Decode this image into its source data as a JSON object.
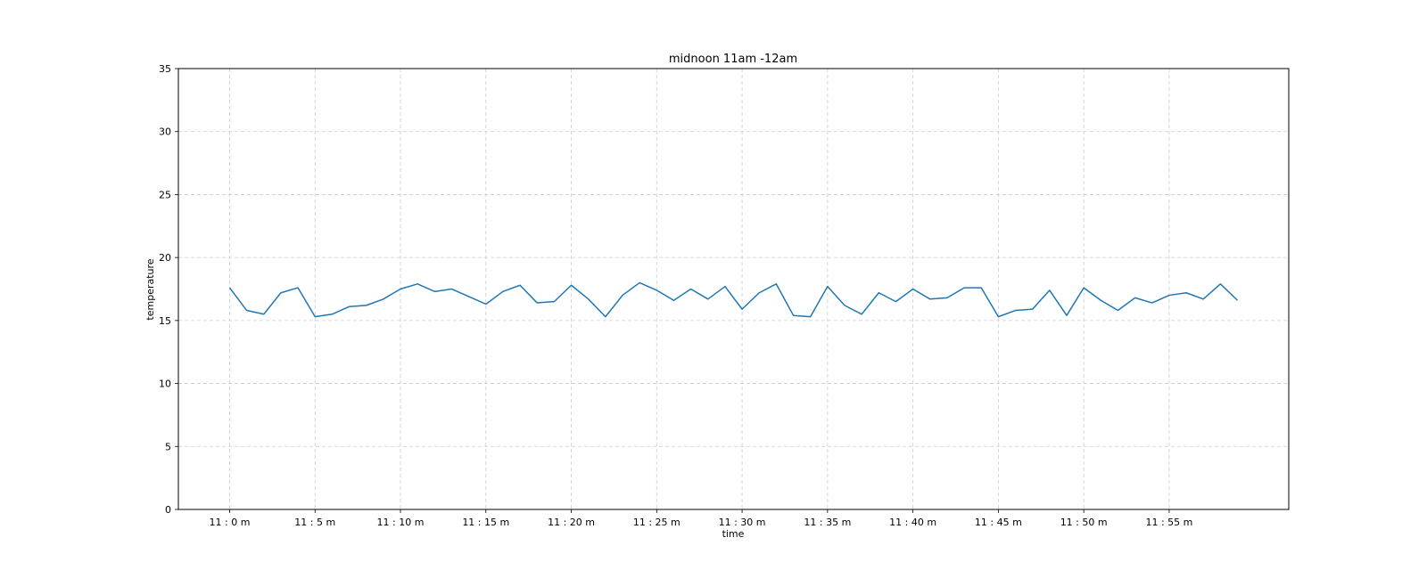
{
  "chart_data": {
    "type": "line",
    "title": "midnoon 11am -12am",
    "xlabel": "time",
    "ylabel": "temperature",
    "ylim": [
      0,
      35
    ],
    "yticks": [
      0,
      5,
      10,
      15,
      20,
      25,
      30,
      35
    ],
    "xlim": [
      -3,
      62
    ],
    "xticks": [
      {
        "value": 0,
        "label": "11 : 0 m"
      },
      {
        "value": 5,
        "label": "11 : 5 m"
      },
      {
        "value": 10,
        "label": "11 : 10 m"
      },
      {
        "value": 15,
        "label": "11 : 15 m"
      },
      {
        "value": 20,
        "label": "11 : 20 m"
      },
      {
        "value": 25,
        "label": "11 : 25 m"
      },
      {
        "value": 30,
        "label": "11 : 30 m"
      },
      {
        "value": 35,
        "label": "11 : 35 m"
      },
      {
        "value": 40,
        "label": "11 : 40 m"
      },
      {
        "value": 45,
        "label": "11 : 45 m"
      },
      {
        "value": 50,
        "label": "11 : 50 m"
      },
      {
        "value": 55,
        "label": "11 : 55 m"
      }
    ],
    "grid": true,
    "series": [
      {
        "color": "#1f77b4",
        "x": [
          0,
          1,
          2,
          3,
          4,
          5,
          6,
          7,
          8,
          9,
          10,
          11,
          12,
          13,
          14,
          15,
          16,
          17,
          18,
          19,
          20,
          21,
          22,
          23,
          24,
          25,
          26,
          27,
          28,
          29,
          30,
          31,
          32,
          33,
          34,
          35,
          36,
          37,
          38,
          39,
          40,
          41,
          42,
          43,
          44,
          45,
          46,
          47,
          48,
          49,
          50,
          51,
          52,
          53,
          54,
          55,
          56,
          57,
          58,
          59
        ],
        "values": [
          17.6,
          15.8,
          15.5,
          17.2,
          17.6,
          15.3,
          15.5,
          16.1,
          16.2,
          16.7,
          17.5,
          17.9,
          17.3,
          17.5,
          16.9,
          16.3,
          17.3,
          17.8,
          16.4,
          16.5,
          17.8,
          16.7,
          15.3,
          17.0,
          18.0,
          17.4,
          16.6,
          17.5,
          16.7,
          17.7,
          15.9,
          17.2,
          17.9,
          15.4,
          15.3,
          17.7,
          16.2,
          15.5,
          17.2,
          16.5,
          17.5,
          16.7,
          16.8,
          17.6,
          17.6,
          15.3,
          15.8,
          15.9,
          17.4,
          15.4,
          17.6,
          16.6,
          15.8,
          16.8,
          16.4,
          17.0,
          17.2,
          16.7,
          17.9,
          16.6
        ]
      }
    ]
  }
}
